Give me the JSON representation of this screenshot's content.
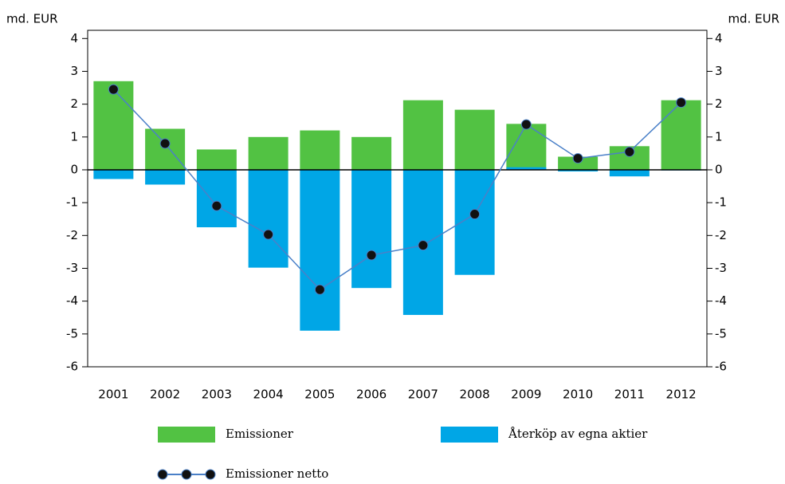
{
  "chart_data": {
    "type": "bar",
    "y_label": "md. EUR",
    "y2_label": "md. EUR",
    "categories": [
      "2001",
      "2002",
      "2003",
      "2004",
      "2005",
      "2006",
      "2007",
      "2008",
      "2009",
      "2010",
      "2011",
      "2012"
    ],
    "series": [
      {
        "name": "Emissioner",
        "color": "#52c243",
        "type": "bar",
        "values": [
          2.7,
          1.25,
          0.62,
          1.0,
          1.2,
          1.0,
          2.12,
          1.83,
          1.4,
          0.4,
          0.72,
          2.12
        ]
      },
      {
        "name": "Återköp av egna aktier",
        "color": "#00a6e6",
        "type": "bar",
        "values": [
          -0.28,
          -0.45,
          -1.75,
          -2.98,
          -4.9,
          -3.6,
          -4.42,
          -3.2,
          0.08,
          -0.05,
          -0.2,
          -0.02
        ]
      },
      {
        "name": "Emissioner netto",
        "color": "#4a80c8",
        "type": "line",
        "values": [
          2.45,
          0.8,
          -1.1,
          -1.97,
          -3.65,
          -2.6,
          -2.3,
          -1.35,
          1.38,
          0.35,
          0.55,
          2.05
        ]
      }
    ],
    "ylim": [
      -6,
      4.25
    ],
    "yticks": [
      -6,
      -5,
      -4,
      -3,
      -2,
      -1,
      0,
      1,
      2,
      3,
      4
    ],
    "y2lim": [
      -6,
      4.25
    ],
    "y2ticks": [
      -6,
      -5,
      -4,
      -3,
      -2,
      -1,
      0,
      1,
      2,
      3,
      4
    ]
  }
}
